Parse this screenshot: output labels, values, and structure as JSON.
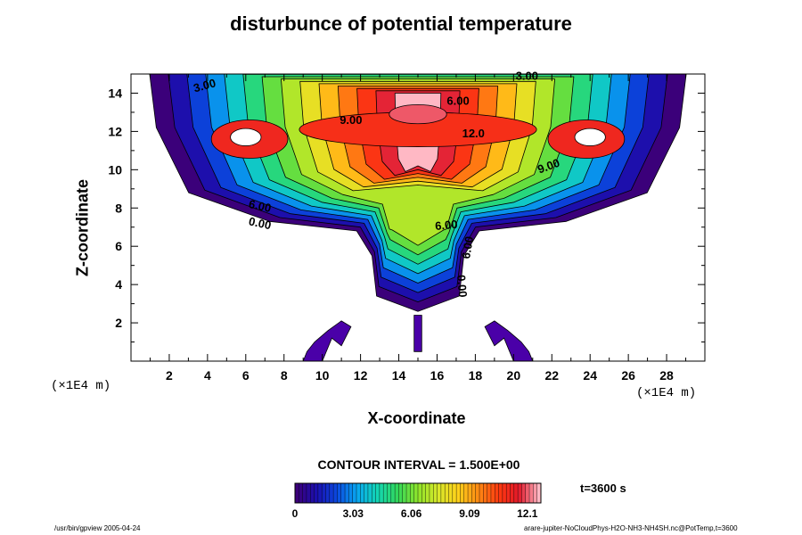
{
  "chart_data": {
    "type": "contour",
    "title": "disturbunce of potential temperature",
    "xlabel": "X-coordinate",
    "ylabel": "Z-coordinate",
    "x_unit": "(×1E4 m)",
    "y_unit": "(×1E4 m)",
    "xlim": [
      0,
      30
    ],
    "ylim": [
      0,
      15
    ],
    "xticks": [
      "2",
      "4",
      "6",
      "8",
      "10",
      "12",
      "14",
      "16",
      "18",
      "20",
      "22",
      "24",
      "26",
      "28"
    ],
    "yticks": [
      "2",
      "4",
      "6",
      "8",
      "10",
      "12",
      "14"
    ],
    "contour_interval_text": "CONTOUR INTERVAL = 1.500E+00",
    "colorbar": {
      "min": 0,
      "max": 12.1,
      "tick_labels": [
        "0",
        "3.03",
        "6.06",
        "9.09",
        "12.1"
      ],
      "colors": [
        "#3b007a",
        "#1a10b0",
        "#0a4ae0",
        "#09a8f0",
        "#13d6b4",
        "#33d85a",
        "#8fe42a",
        "#d8e82a",
        "#ffd01a",
        "#ff8a14",
        "#ff3a10",
        "#e2182a",
        "#ffb8c4"
      ]
    },
    "contour_labels": [
      "3.00",
      "3.00",
      "6.00",
      "9.00",
      "12.0",
      "9.00",
      "6.00",
      "0.00",
      "6.00",
      "6.00",
      "0.00"
    ],
    "time_label": "t=3600 s"
  },
  "footer": {
    "left": "/usr/bin/gpview 2005-04-24",
    "right": "arare-jupiter-NoCloudPhys-H2O-NH3-NH4SH.nc@PotTemp,t=3600"
  }
}
